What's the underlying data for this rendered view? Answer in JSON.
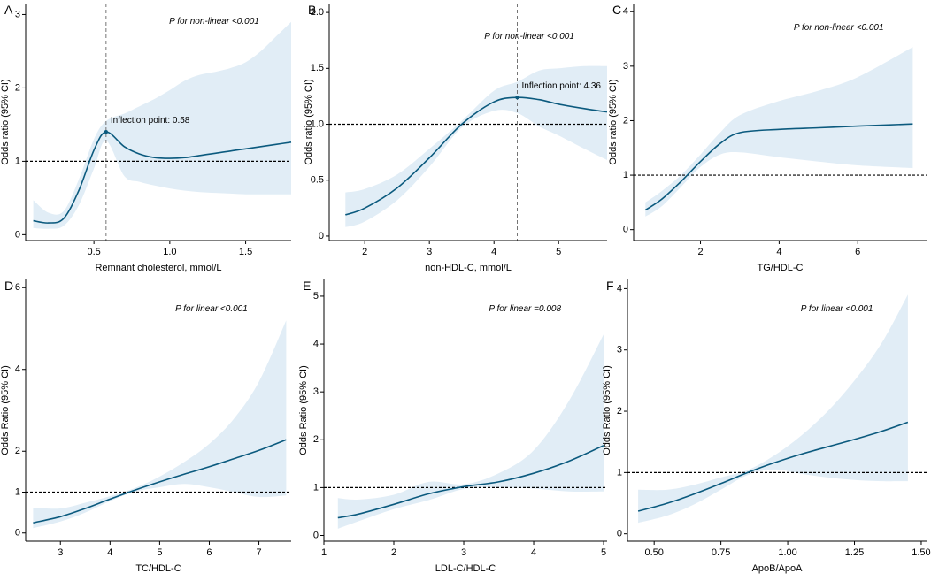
{
  "colors": {
    "line": "#0b5a7e",
    "band": "#e1edf6",
    "ref": "#000000",
    "guide": "#666666"
  },
  "chart_data": [
    {
      "panel": "A",
      "type": "line",
      "xlabel": "Remnant cholesterol, mmol/L",
      "ylabel": "Odds ratio (95% CI)",
      "xlim": [
        0.05,
        1.8
      ],
      "ylim": [
        -0.08,
        3.15
      ],
      "xticks": [
        0.5,
        1.0,
        1.5
      ],
      "xtick_labels": [
        "0.5",
        "1.0",
        "1.5"
      ],
      "yticks": [
        0,
        1,
        2,
        3
      ],
      "ytick_labels": [
        "0",
        "1",
        "2",
        "3"
      ],
      "reference_y": 1,
      "annotation": "P for non-linear <0.001",
      "inflection": {
        "x": 0.58,
        "y": 1.4,
        "label": "Inflection point: 0.58"
      },
      "x": [
        0.1,
        0.2,
        0.3,
        0.4,
        0.5,
        0.58,
        0.7,
        0.8,
        0.9,
        1.0,
        1.1,
        1.2,
        1.3,
        1.4,
        1.5,
        1.6,
        1.7,
        1.8
      ],
      "y": [
        0.19,
        0.16,
        0.22,
        0.6,
        1.15,
        1.4,
        1.2,
        1.1,
        1.05,
        1.04,
        1.05,
        1.08,
        1.11,
        1.14,
        1.17,
        1.2,
        1.23,
        1.26
      ],
      "lower": [
        0.09,
        0.08,
        0.12,
        0.4,
        0.9,
        1.28,
        0.8,
        0.72,
        0.67,
        0.63,
        0.6,
        0.58,
        0.57,
        0.56,
        0.55,
        0.55,
        0.55,
        0.55
      ],
      "upper": [
        0.47,
        0.3,
        0.32,
        0.75,
        1.3,
        1.55,
        1.65,
        1.75,
        1.85,
        1.97,
        2.1,
        2.18,
        2.22,
        2.27,
        2.35,
        2.5,
        2.7,
        2.9
      ]
    },
    {
      "panel": "B",
      "type": "line",
      "xlabel": "non-HDL-C, mmol/L",
      "ylabel": "Odds ratio (95% CI)",
      "xlim": [
        1.45,
        5.75
      ],
      "ylim": [
        -0.04,
        2.08
      ],
      "xticks": [
        2,
        3,
        4,
        5
      ],
      "xtick_labels": [
        "2",
        "3",
        "4",
        "5"
      ],
      "yticks": [
        0,
        0.5,
        1.0,
        1.5,
        2.0
      ],
      "ytick_labels": [
        "0",
        "0.5",
        "1.0",
        "1.5",
        "2.0"
      ],
      "reference_y": 1,
      "annotation": "P for non-linear <0.001",
      "inflection": {
        "x": 4.36,
        "y": 1.24,
        "label": "Inflection point: 4.36"
      },
      "x": [
        1.7,
        2.0,
        2.5,
        3.0,
        3.5,
        4.0,
        4.36,
        4.7,
        5.0,
        5.4,
        5.75
      ],
      "y": [
        0.19,
        0.25,
        0.43,
        0.7,
        1.0,
        1.2,
        1.24,
        1.22,
        1.18,
        1.14,
        1.11
      ],
      "lower": [
        0.08,
        0.13,
        0.32,
        0.62,
        0.97,
        1.12,
        1.1,
        0.98,
        0.9,
        0.78,
        0.68
      ],
      "upper": [
        0.39,
        0.42,
        0.55,
        0.78,
        1.03,
        1.3,
        1.38,
        1.48,
        1.5,
        1.52,
        1.52
      ]
    },
    {
      "panel": "C",
      "type": "line",
      "xlabel": "TG/HDL-C",
      "ylabel": "Odds ratio (95% CI)",
      "xlim": [
        0.3,
        7.75
      ],
      "ylim": [
        -0.2,
        4.15
      ],
      "xticks": [
        2,
        4,
        6
      ],
      "xtick_labels": [
        "2",
        "4",
        "6"
      ],
      "yticks": [
        0,
        1,
        2,
        3,
        4
      ],
      "ytick_labels": [
        "0",
        "1",
        "2",
        "3",
        "4"
      ],
      "reference_y": 1,
      "annotation": "P for non-linear <0.001",
      "x": [
        0.6,
        1.0,
        1.5,
        2.0,
        2.5,
        3.0,
        4.0,
        5.0,
        6.0,
        7.4
      ],
      "y": [
        0.36,
        0.55,
        0.88,
        1.25,
        1.58,
        1.78,
        1.84,
        1.87,
        1.9,
        1.94
      ],
      "lower": [
        0.24,
        0.42,
        0.78,
        1.15,
        1.38,
        1.42,
        1.33,
        1.25,
        1.18,
        1.13
      ],
      "upper": [
        0.5,
        0.7,
        1.0,
        1.38,
        1.78,
        2.1,
        2.36,
        2.55,
        2.8,
        3.35
      ]
    },
    {
      "panel": "D",
      "type": "line",
      "xlabel": "TC/HDL-C",
      "ylabel": "Odds Ratio (95% CI)",
      "xlim": [
        2.3,
        7.65
      ],
      "ylim": [
        -0.2,
        6.2
      ],
      "xticks": [
        3,
        4,
        5,
        6,
        7
      ],
      "xtick_labels": [
        "3",
        "4",
        "5",
        "6",
        "7"
      ],
      "yticks": [
        0,
        1,
        2,
        4,
        6
      ],
      "ytick_labels": [
        "0",
        "1",
        "2",
        "4",
        "6"
      ],
      "reference_y": 1,
      "annotation": "P for linear <0.001",
      "x": [
        2.45,
        3.0,
        3.5,
        4.0,
        4.5,
        5.0,
        5.5,
        6.0,
        6.5,
        7.0,
        7.55
      ],
      "y": [
        0.25,
        0.4,
        0.6,
        0.83,
        1.05,
        1.25,
        1.44,
        1.62,
        1.82,
        2.02,
        2.28
      ],
      "lower": [
        0.12,
        0.28,
        0.5,
        0.78,
        1.01,
        1.12,
        1.2,
        1.12,
        1.0,
        0.88,
        0.92
      ],
      "upper": [
        0.62,
        0.6,
        0.74,
        0.9,
        1.1,
        1.38,
        1.74,
        2.18,
        2.8,
        3.7,
        5.2
      ]
    },
    {
      "panel": "E",
      "type": "line",
      "xlabel": "LDL-C/HDL-C",
      "ylabel": "Odds Ratio (95% CI)",
      "xlim": [
        1.0,
        5.05
      ],
      "ylim": [
        -0.12,
        5.35
      ],
      "xticks": [
        1,
        2,
        3,
        4,
        5
      ],
      "xtick_labels": [
        "1",
        "2",
        "3",
        "4",
        "5"
      ],
      "yticks": [
        0,
        1,
        2,
        3,
        4,
        5
      ],
      "ytick_labels": [
        "0",
        "1",
        "2",
        "3",
        "4",
        "5"
      ],
      "reference_y": 1,
      "annotation": "P for linear =0.008",
      "x": [
        1.2,
        1.5,
        2.0,
        2.5,
        3.0,
        3.5,
        4.0,
        4.5,
        5.0
      ],
      "y": [
        0.37,
        0.45,
        0.65,
        0.87,
        1.02,
        1.12,
        1.3,
        1.55,
        1.88
      ],
      "lower": [
        0.14,
        0.3,
        0.55,
        0.74,
        0.97,
        1.0,
        0.98,
        0.92,
        0.92
      ],
      "upper": [
        0.78,
        0.75,
        0.85,
        1.12,
        1.07,
        1.3,
        1.78,
        2.8,
        4.2
      ]
    },
    {
      "panel": "F",
      "type": "line",
      "xlabel": "ApoB/ApoA",
      "ylabel": "Odds Ratio (95% CI)",
      "xlim": [
        0.4,
        1.52
      ],
      "ylim": [
        -0.12,
        4.15
      ],
      "xticks": [
        0.5,
        0.75,
        1.0,
        1.25,
        1.5
      ],
      "xtick_labels": [
        "0.50",
        "0.75",
        "1.00",
        "1.25",
        "1.50"
      ],
      "yticks": [
        0,
        1,
        2,
        3,
        4
      ],
      "ytick_labels": [
        "0",
        "1",
        "2",
        "3",
        "4"
      ],
      "reference_y": 1,
      "annotation": "P for linear <0.001",
      "x": [
        0.44,
        0.55,
        0.65,
        0.75,
        0.85,
        0.95,
        1.05,
        1.15,
        1.25,
        1.35,
        1.45
      ],
      "y": [
        0.37,
        0.5,
        0.65,
        0.82,
        1.0,
        1.16,
        1.3,
        1.42,
        1.54,
        1.67,
        1.82
      ],
      "lower": [
        0.18,
        0.3,
        0.48,
        0.72,
        0.96,
        1.05,
        0.98,
        0.92,
        0.88,
        0.86,
        0.86
      ],
      "upper": [
        0.72,
        0.72,
        0.8,
        0.92,
        1.04,
        1.28,
        1.6,
        2.0,
        2.5,
        3.1,
        3.9
      ]
    }
  ]
}
